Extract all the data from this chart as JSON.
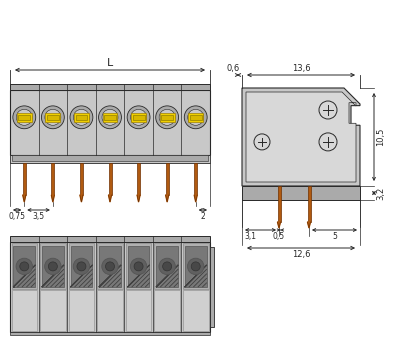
{
  "bg": "#ffffff",
  "lg": "#c8c8c8",
  "mg": "#aaaaaa",
  "dg": "#888888",
  "vdg": "#555555",
  "yellow": "#f0d000",
  "obr": "#b05a10",
  "lc": "#282828",
  "n": 7,
  "dim_labels": {
    "L": "L",
    "d06": "0,6",
    "d136": "13,6",
    "d105": "10,5",
    "d32": "3,2",
    "d075": "0,75",
    "d35": "3,5",
    "d2": "2",
    "d31": "3,1",
    "d05": "0,5",
    "d5": "5",
    "d126": "12,6"
  }
}
